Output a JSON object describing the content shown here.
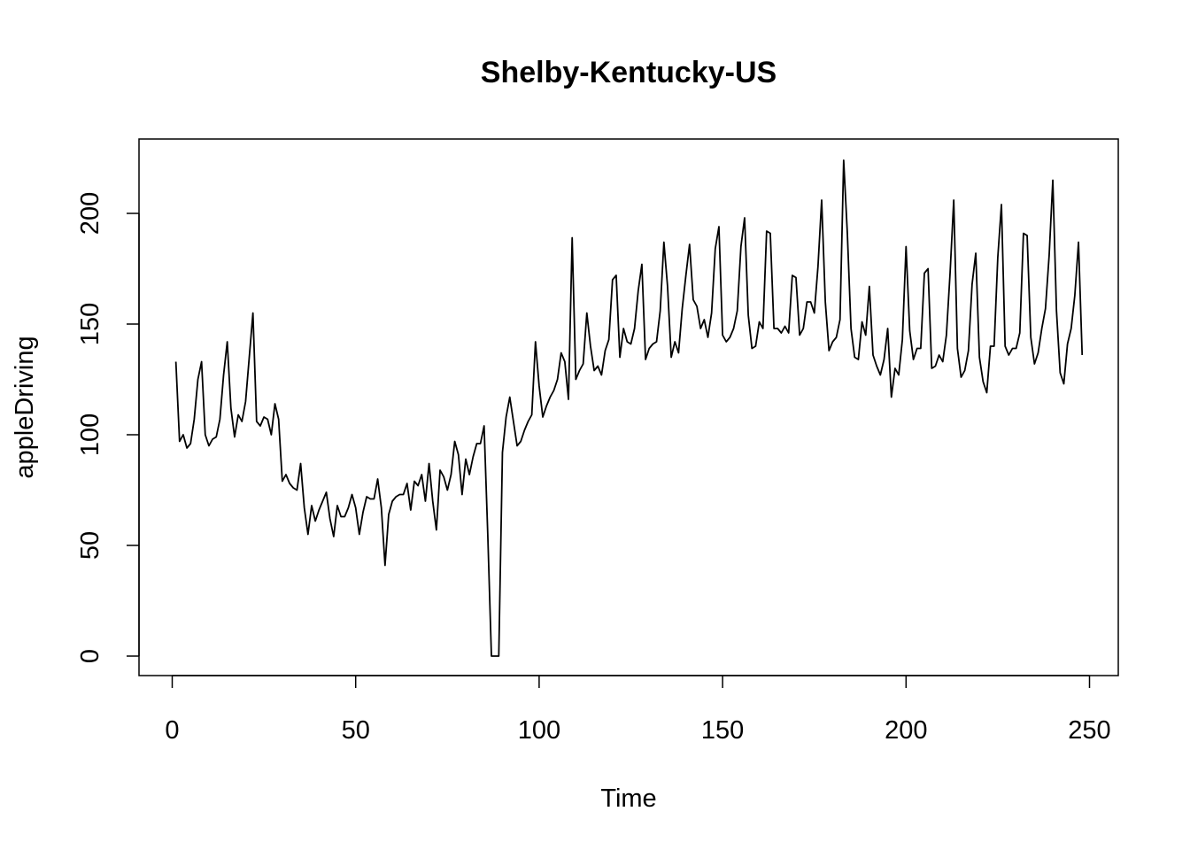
{
  "chart_data": {
    "type": "line",
    "title": "Shelby-Kentucky-US",
    "xlabel": "Time",
    "ylabel": "appleDriving",
    "xlim": [
      1,
      248
    ],
    "ylim": [
      0,
      225
    ],
    "xticks": [
      0,
      50,
      100,
      150,
      200,
      250
    ],
    "yticks": [
      0,
      50,
      100,
      150,
      200
    ],
    "grid": false,
    "legend": "none",
    "line_color": "#000000",
    "x_start": 1,
    "series": [
      {
        "values": [
          133,
          97,
          100,
          94,
          96,
          107,
          125,
          133,
          100,
          95,
          98,
          99,
          107,
          127,
          142,
          112,
          99,
          109,
          106,
          115,
          135,
          155,
          106,
          104,
          108,
          107,
          100,
          114,
          107,
          79,
          82,
          78,
          76,
          75,
          87,
          67,
          55,
          68,
          61,
          66,
          70,
          74,
          62,
          54,
          68,
          63,
          63,
          67,
          73,
          67,
          55,
          65,
          72,
          71,
          71,
          80,
          67,
          41,
          64,
          70,
          72,
          73,
          73,
          78,
          66,
          79,
          77,
          82,
          70,
          87,
          70,
          57,
          84,
          81,
          75,
          82,
          97,
          91,
          73,
          89,
          82,
          90,
          96,
          96,
          104,
          55,
          0,
          0,
          0,
          92,
          108,
          117,
          106,
          95,
          97,
          102,
          106,
          109,
          142,
          122,
          108,
          113,
          117,
          120,
          125,
          137,
          133,
          116,
          189,
          125,
          129,
          132,
          155,
          140,
          129,
          131,
          127,
          138,
          143,
          170,
          172,
          135,
          148,
          142,
          141,
          148,
          165,
          177,
          134,
          139,
          141,
          142,
          156,
          187,
          167,
          135,
          142,
          137,
          157,
          172,
          186,
          161,
          158,
          148,
          152,
          144,
          155,
          184,
          194,
          145,
          142,
          144,
          148,
          156,
          185,
          198,
          154,
          139,
          140,
          151,
          148,
          192,
          191,
          148,
          148,
          146,
          149,
          146,
          172,
          171,
          145,
          148,
          160,
          160,
          155,
          176,
          206,
          160,
          138,
          142,
          144,
          152,
          224,
          191,
          148,
          135,
          134,
          151,
          145,
          167,
          136,
          131,
          127,
          134,
          148,
          117,
          130,
          127,
          143,
          185,
          147,
          134,
          139,
          139,
          173,
          175,
          130,
          131,
          136,
          133,
          145,
          173,
          206,
          139,
          126,
          129,
          138,
          168,
          182,
          135,
          124,
          119,
          140,
          140,
          180,
          204,
          140,
          136,
          139,
          139,
          146,
          191,
          190,
          144,
          132,
          137,
          148,
          157,
          181,
          215,
          156,
          128,
          123,
          141,
          148,
          163,
          187,
          136
        ]
      }
    ]
  }
}
